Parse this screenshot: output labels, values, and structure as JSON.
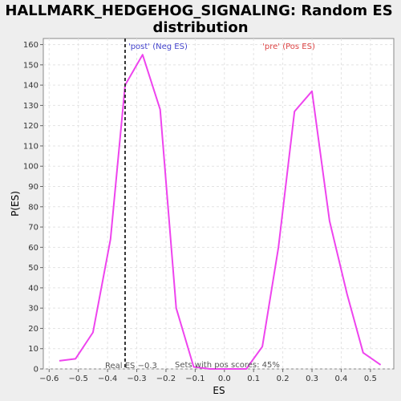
{
  "chart_data": {
    "type": "line",
    "title_line1": "HALLMARK_HEDGEHOG_SIGNALING: Random ES",
    "title_line2": "distribution",
    "xlabel": "ES",
    "ylabel": "P(ES)",
    "xlim": [
      -0.62,
      0.58
    ],
    "ylim": [
      0,
      163
    ],
    "xticks": [
      -0.6,
      -0.5,
      -0.4,
      -0.3,
      -0.2,
      -0.1,
      0.0,
      0.1,
      0.2,
      0.3,
      0.4,
      0.5
    ],
    "xtick_labels": [
      "−0.6",
      "−0.5",
      "−0.4",
      "−0.3",
      "−0.2",
      "−0.1",
      "0.0",
      "0.1",
      "0.2",
      "0.3",
      "0.4",
      "0.5"
    ],
    "yticks": [
      0,
      10,
      20,
      30,
      40,
      50,
      60,
      70,
      80,
      90,
      100,
      110,
      120,
      130,
      140,
      150,
      160
    ],
    "grid": true,
    "series": [
      {
        "color": "#ee44ee",
        "x": [
          -0.565,
          -0.51,
          -0.45,
          -0.39,
          -0.34,
          -0.28,
          -0.22,
          -0.165,
          -0.105,
          -0.05,
          0.015,
          0.075,
          0.13,
          0.185,
          0.24,
          0.3,
          0.36,
          0.42,
          0.475,
          0.535
        ],
        "y": [
          4,
          5,
          18,
          64,
          140,
          155,
          128,
          30,
          1,
          0,
          0,
          0,
          11,
          60,
          127,
          137,
          73,
          37,
          8,
          2
        ]
      }
    ],
    "real_es": -0.34,
    "real_es_label": "Real ES −0.3",
    "sets_label": "Sets with pos scores: 45%",
    "neg_label": "'post' (Neg ES)",
    "pos_label": "'pre' (Pos ES)",
    "neg_color": "#4444cc",
    "pos_color": "#dd4444",
    "line_color": "#ee44ee"
  }
}
